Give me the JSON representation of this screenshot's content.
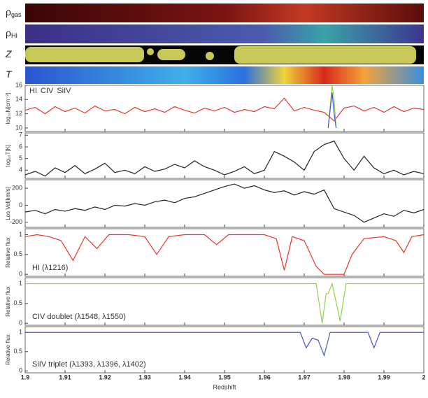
{
  "strips": [
    {
      "symbol": "ρ",
      "sub": "gas"
    },
    {
      "symbol": "ρ",
      "sub": "HI"
    },
    {
      "symbol": "Z"
    },
    {
      "symbol": "T"
    }
  ],
  "chart_data": [
    {
      "type": "line",
      "ylabel": "log₁₀N[cm⁻²]",
      "xlim": [
        1.9,
        2.0
      ],
      "ylim": [
        9.5,
        16
      ],
      "yticks": [
        10,
        12,
        14,
        16
      ],
      "legend": "top-left",
      "series": [
        {
          "name": "HI",
          "color": "#e8352a",
          "x": [
            1.9,
            1.9025,
            1.905,
            1.9075,
            1.91,
            1.9125,
            1.915,
            1.9175,
            1.92,
            1.9225,
            1.925,
            1.9275,
            1.93,
            1.9325,
            1.935,
            1.9375,
            1.94,
            1.9425,
            1.945,
            1.9475,
            1.95,
            1.9525,
            1.955,
            1.9575,
            1.96,
            1.9625,
            1.965,
            1.9675,
            1.97,
            1.9725,
            1.975,
            1.9775,
            1.98,
            1.9825,
            1.985,
            1.9875,
            1.99,
            1.9925,
            1.995,
            1.9975,
            2.0
          ],
          "values": [
            12.5,
            12.9,
            12.0,
            13.0,
            12.3,
            12.8,
            12.1,
            13.1,
            12.4,
            12.6,
            12.0,
            12.9,
            12.3,
            12.7,
            12.2,
            13.0,
            12.5,
            12.1,
            12.8,
            12.4,
            12.9,
            12.2,
            12.6,
            12.3,
            13.0,
            12.7,
            14.2,
            12.4,
            12.9,
            12.5,
            12.2,
            11.0,
            12.8,
            13.1,
            12.4,
            12.9,
            12.2,
            13.0,
            12.3,
            12.8,
            12.6
          ]
        },
        {
          "name": "CIV",
          "color": "#8fd14f",
          "x": [
            1.976,
            1.9765,
            1.977,
            1.9775,
            1.978
          ],
          "values": [
            10,
            13,
            16,
            14,
            10
          ]
        },
        {
          "name": "SiIV",
          "color": "#4a56c8",
          "x": [
            1.976,
            1.9765,
            1.977,
            1.9775,
            1.978
          ],
          "values": [
            10,
            12.5,
            15,
            12,
            10
          ]
        }
      ]
    },
    {
      "type": "line",
      "ylabel": "log₁₀T[K]",
      "xlim": [
        1.9,
        2.0
      ],
      "ylim": [
        3.3,
        7.2
      ],
      "yticks": [
        4,
        5,
        6,
        7
      ],
      "series": [
        {
          "color": "#222222",
          "x": [
            1.9,
            1.9025,
            1.905,
            1.9075,
            1.91,
            1.9125,
            1.915,
            1.9175,
            1.92,
            1.9225,
            1.925,
            1.9275,
            1.93,
            1.9325,
            1.935,
            1.9375,
            1.94,
            1.9425,
            1.945,
            1.9475,
            1.95,
            1.9525,
            1.955,
            1.9575,
            1.96,
            1.9625,
            1.965,
            1.9675,
            1.97,
            1.9725,
            1.975,
            1.9775,
            1.98,
            1.9825,
            1.985,
            1.9875,
            1.99,
            1.9925,
            1.995,
            1.9975,
            2.0
          ],
          "values": [
            3.6,
            3.9,
            3.5,
            4.2,
            3.8,
            4.4,
            3.7,
            4.1,
            4.6,
            3.8,
            4.0,
            3.7,
            4.3,
            3.9,
            4.1,
            4.5,
            4.2,
            4.8,
            4.3,
            4.0,
            3.6,
            3.9,
            4.3,
            3.7,
            4.0,
            5.6,
            5.2,
            4.7,
            4.0,
            5.6,
            6.2,
            6.5,
            5.0,
            4.0,
            5.2,
            4.2,
            3.7,
            4.0,
            3.6,
            3.9,
            3.7
          ]
        }
      ]
    },
    {
      "type": "line",
      "ylabel": "Los Vel[km/s]",
      "xlim": [
        1.9,
        2.0
      ],
      "ylim": [
        -260,
        300
      ],
      "yticks": [
        -200,
        0,
        200
      ],
      "series": [
        {
          "color": "#222222",
          "x": [
            1.9,
            1.9025,
            1.905,
            1.9075,
            1.91,
            1.9125,
            1.915,
            1.9175,
            1.92,
            1.9225,
            1.925,
            1.9275,
            1.93,
            1.9325,
            1.935,
            1.9375,
            1.94,
            1.9425,
            1.945,
            1.9475,
            1.95,
            1.9525,
            1.955,
            1.9575,
            1.96,
            1.9625,
            1.965,
            1.9675,
            1.97,
            1.9725,
            1.975,
            1.9775,
            1.98,
            1.9825,
            1.985,
            1.9875,
            1.99,
            1.9925,
            1.995,
            1.9975,
            2.0
          ],
          "values": [
            -80,
            -60,
            -100,
            -50,
            -70,
            -40,
            -60,
            -20,
            -50,
            0,
            -10,
            20,
            0,
            40,
            60,
            30,
            80,
            100,
            140,
            180,
            220,
            250,
            200,
            230,
            180,
            150,
            170,
            120,
            160,
            130,
            180,
            -40,
            -80,
            -120,
            -200,
            -150,
            -100,
            -130,
            -60,
            -90,
            -50
          ]
        }
      ]
    },
    {
      "type": "line",
      "ylabel": "Relative flux",
      "annotation": "HI (λ1216)",
      "xlim": [
        1.9,
        2.0
      ],
      "ylim": [
        -0.05,
        1.15
      ],
      "yticks": [
        0,
        0.5,
        1
      ],
      "series": [
        {
          "color": "#e8352a",
          "x": [
            1.9,
            1.903,
            1.906,
            1.909,
            1.912,
            1.915,
            1.918,
            1.921,
            1.926,
            1.93,
            1.933,
            1.936,
            1.94,
            1.945,
            1.948,
            1.951,
            1.955,
            1.96,
            1.963,
            1.965,
            1.967,
            1.97,
            1.973,
            1.975,
            1.98,
            1.982,
            1.985,
            1.99,
            1.993,
            1.995,
            1.997,
            2.0
          ],
          "values": [
            0.95,
            1,
            0.95,
            0.85,
            0.35,
            0.95,
            0.65,
            1,
            1,
            0.95,
            0.5,
            0.95,
            1,
            1,
            0.75,
            1,
            1,
            1,
            0.9,
            0.1,
            0.95,
            0.85,
            0.2,
            0,
            0,
            0.5,
            0.9,
            0.95,
            0.85,
            0.55,
            0.95,
            1
          ]
        }
      ]
    },
    {
      "type": "line",
      "ylabel": "Relative flux",
      "annotation": "CIV doublet (λ1548, λ1550)",
      "xlim": [
        1.9,
        2.0
      ],
      "ylim": [
        -0.05,
        1.15
      ],
      "yticks": [
        0,
        0.5,
        1
      ],
      "series": [
        {
          "color": "#8fd14f",
          "x": [
            1.9,
            1.973,
            1.9745,
            1.9755,
            1.976,
            1.977,
            1.9785,
            1.979,
            1.9805,
            2.0
          ],
          "values": [
            1,
            1,
            0,
            0.75,
            0.75,
            1,
            0.3,
            0.05,
            1,
            1
          ]
        }
      ]
    },
    {
      "type": "line",
      "ylabel": "Relative flux",
      "annotation": "SiIV triplet (λ1393, λ1396, λ1402)",
      "xlabel": "Redshift",
      "xlim": [
        1.9,
        2.0
      ],
      "ylim": [
        -0.05,
        1.15
      ],
      "yticks": [
        0,
        0.5,
        1
      ],
      "xticks": [
        1.9,
        1.91,
        1.92,
        1.93,
        1.94,
        1.95,
        1.96,
        1.97,
        1.98,
        1.99,
        2
      ],
      "series": [
        {
          "color": "#4a56c8",
          "x": [
            1.9,
            1.969,
            1.9705,
            1.972,
            1.9735,
            1.975,
            1.9765,
            1.986,
            1.9875,
            1.989,
            2.0
          ],
          "values": [
            1,
            1,
            0.6,
            0.85,
            0.8,
            0.4,
            1,
            1,
            0.6,
            1,
            1
          ]
        }
      ]
    }
  ]
}
